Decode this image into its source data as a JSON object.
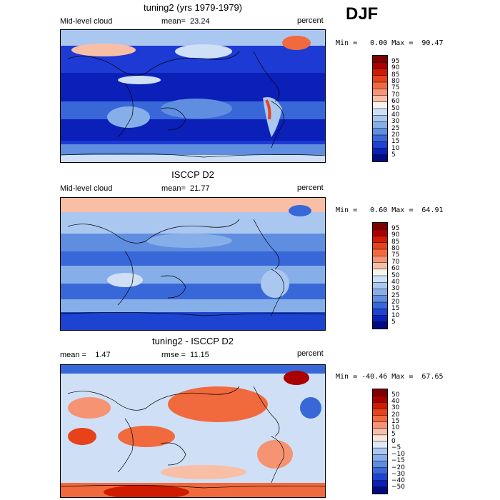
{
  "season": "DJF",
  "panels": [
    {
      "title": "tuning2 (yrs 1979-1979)",
      "left_label": "Mid-level cloud",
      "mid_label": "mean=  23.24",
      "units": "percent",
      "stats": "Min =   0.00 Max =  90.47",
      "ticks": [
        "95",
        "90",
        "85",
        "80",
        "75",
        "70",
        "60",
        "50",
        "40",
        "30",
        "25",
        "20",
        "15",
        "10",
        "5"
      ],
      "colors": [
        "#7f0000",
        "#a90000",
        "#d01b00",
        "#e8421a",
        "#f06a3e",
        "#f59373",
        "#f9bfa6",
        "#f6f2ee",
        "#cfe0f6",
        "#aac7f0",
        "#86aee8",
        "#5f8ee0",
        "#3868d8",
        "#1c44d0",
        "#0b20b8",
        "#000c80"
      ],
      "ocean": "#1e3ad4"
    },
    {
      "title": "ISCCP D2",
      "left_label": "Mid-level cloud",
      "mid_label": "mean=  21.77",
      "units": "percent",
      "stats": "Min =   0.60 Max =  64.91",
      "ticks": [
        "95",
        "90",
        "85",
        "80",
        "75",
        "70",
        "60",
        "50",
        "40",
        "30",
        "25",
        "20",
        "15",
        "10",
        "5"
      ],
      "colors": [
        "#7f0000",
        "#a90000",
        "#d01b00",
        "#e8421a",
        "#f06a3e",
        "#f59373",
        "#f9bfa6",
        "#f6f2ee",
        "#cfe0f6",
        "#aac7f0",
        "#86aee8",
        "#5f8ee0",
        "#3868d8",
        "#1c44d0",
        "#0b20b8",
        "#000c80"
      ],
      "ocean": "#3d6ede"
    },
    {
      "title": "tuning2 - ISCCP D2",
      "left_label": "mean =    1.47",
      "mid_label": "rmse =  11.15",
      "units": "percent",
      "stats": "Min = -40.46 Max =  67.65",
      "ticks": [
        "50",
        "40",
        "30",
        "20",
        "15",
        "10",
        "5",
        "0",
        "−5",
        "−10",
        "−15",
        "−20",
        "−30",
        "−40",
        "−50"
      ],
      "colors": [
        "#7f0000",
        "#a90000",
        "#d01b00",
        "#e8421a",
        "#f06a3e",
        "#f59373",
        "#f9bfa6",
        "#fbe6dc",
        "#dde8f8",
        "#aac7f0",
        "#86aee8",
        "#5f8ee0",
        "#3868d8",
        "#1c44d0",
        "#0b20b8",
        "#000c80"
      ],
      "ocean": "#c8daf4"
    }
  ]
}
